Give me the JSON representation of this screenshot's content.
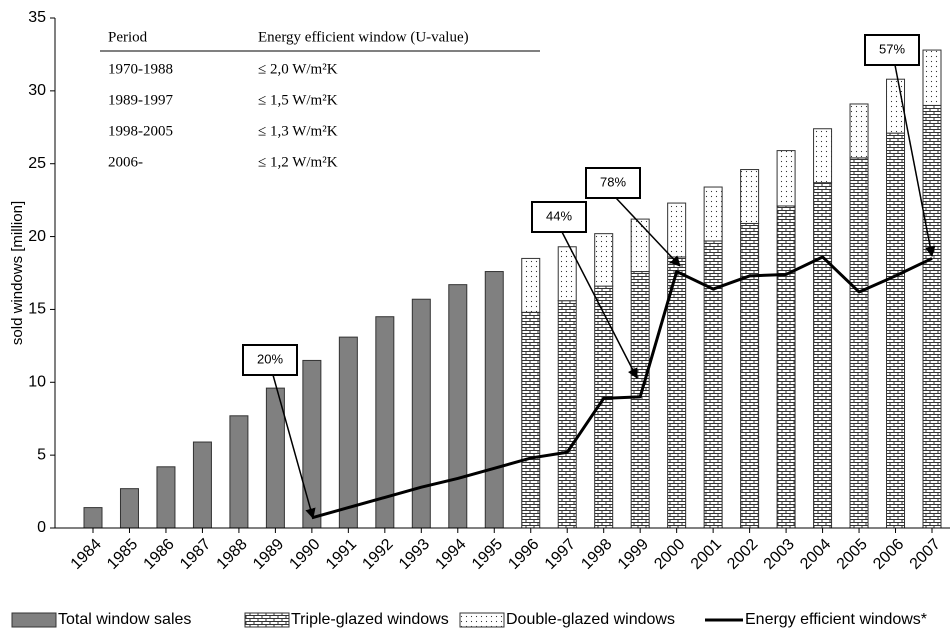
{
  "chart_data": {
    "type": "bar",
    "y_axis_label": "sold windows [million]",
    "categories": [
      "1984",
      "1985",
      "1986",
      "1987",
      "1988",
      "1989",
      "1990",
      "1991",
      "1992",
      "1993",
      "1994",
      "1995",
      "1996",
      "1997",
      "1998",
      "1999",
      "2000",
      "2001",
      "2002",
      "2003",
      "2004",
      "2005",
      "2006",
      "2007"
    ],
    "series": [
      {
        "name": "Total window sales",
        "color": "#808080",
        "values": [
          1.4,
          2.7,
          4.2,
          5.9,
          7.7,
          9.6,
          11.5,
          13.1,
          14.5,
          15.7,
          16.7,
          17.6,
          null,
          null,
          null,
          null,
          null,
          null,
          null,
          null,
          null,
          null,
          null,
          null
        ]
      },
      {
        "name": "Triple-glazed windows",
        "color": "#ffffff",
        "values": [
          null,
          null,
          null,
          null,
          null,
          null,
          null,
          null,
          null,
          null,
          null,
          null,
          14.8,
          15.6,
          16.6,
          17.6,
          18.6,
          19.7,
          20.9,
          22.1,
          23.7,
          25.4,
          27.1,
          29.0
        ]
      },
      {
        "name": "Double-glazed windows",
        "color": "#ffffff",
        "values": [
          null,
          null,
          null,
          null,
          null,
          null,
          null,
          null,
          null,
          null,
          null,
          null,
          3.7,
          3.7,
          3.6,
          3.6,
          3.7,
          3.7,
          3.7,
          3.8,
          3.7,
          3.7,
          3.7,
          3.8
        ]
      },
      {
        "name": "Energy efficient windows*",
        "color": "#000000",
        "type": "line",
        "values": [
          null,
          null,
          null,
          null,
          null,
          null,
          0.7,
          1.4,
          2.1,
          2.8,
          3.4,
          4.1,
          4.8,
          5.2,
          8.9,
          9.0,
          17.6,
          16.4,
          17.3,
          17.4,
          18.6,
          16.2,
          17.3,
          18.5
        ]
      }
    ],
    "ylim": [
      0,
      35
    ],
    "yticks": [
      0,
      5,
      10,
      15,
      20,
      25,
      30,
      35
    ],
    "legend": "bottom",
    "annotations": [
      "20%",
      "44%",
      "78%",
      "57%"
    ],
    "table": {
      "header": [
        "Period",
        "Energy efficient window (U-value)"
      ],
      "rows": [
        [
          "1970-1988",
          "≤ 2,0 W/m²K"
        ],
        [
          "1989-1997",
          "≤ 1,5 W/m²K"
        ],
        [
          "1998-2005",
          "≤ 1,3 W/m²K"
        ],
        [
          "2006-",
          "≤ 1,2 W/m²K"
        ]
      ]
    }
  }
}
